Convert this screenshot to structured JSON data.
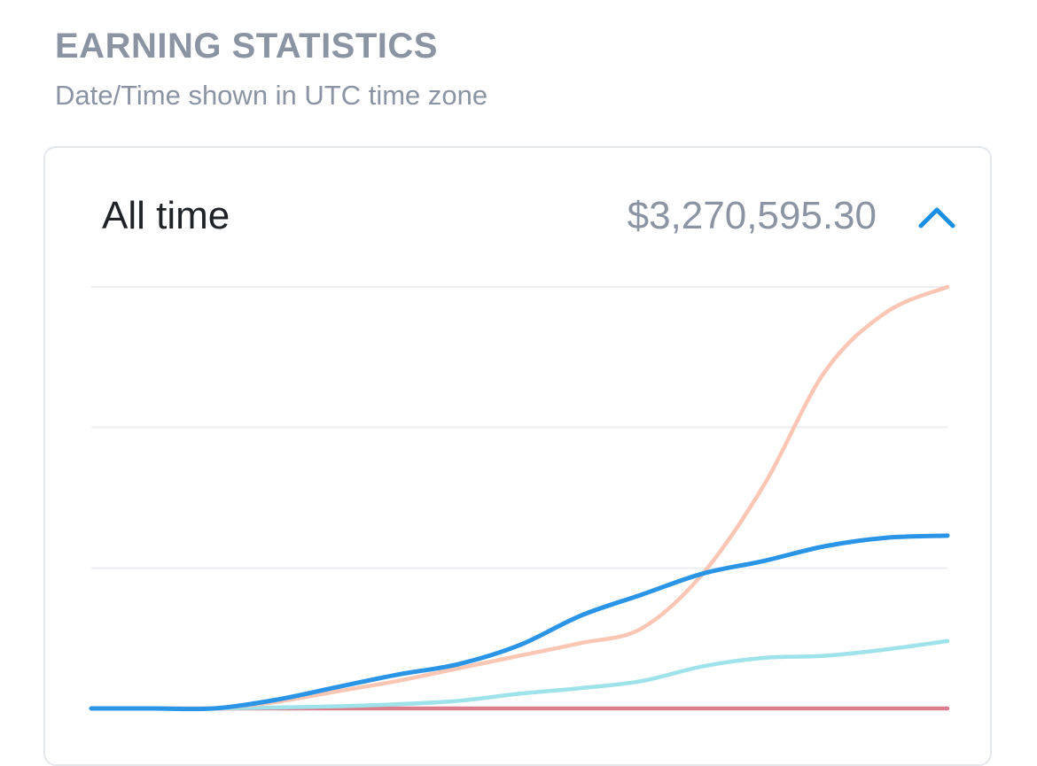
{
  "header": {
    "title": "EARNING STATISTICS",
    "subtitle": "Date/Time shown in UTC time zone"
  },
  "card": {
    "period_label": "All time",
    "total": "$3,270,595.30",
    "toggle_icon": "chevron-up-icon"
  },
  "colors": {
    "accent": "#1a8fe3",
    "series_orange": "#fbc6b4",
    "series_blue": "#2a94e6",
    "series_cyan": "#9ee2ea",
    "series_pink": "#dc7d8d",
    "grid": "#eceef1"
  },
  "chart_data": {
    "type": "line",
    "title": "",
    "xlabel": "",
    "ylabel": "",
    "x": [
      0,
      1,
      2,
      3,
      4,
      5,
      6,
      7,
      8,
      9,
      10,
      11,
      12,
      13,
      14
    ],
    "ylim": [
      0,
      1000
    ],
    "gridlines": [
      0,
      333,
      667,
      1000
    ],
    "series": [
      {
        "name": "series-orange",
        "color": "#fbc6b4",
        "values": [
          0,
          0,
          0,
          15,
          40,
          65,
          95,
          125,
          155,
          190,
          320,
          530,
          800,
          940,
          1000
        ]
      },
      {
        "name": "series-blue",
        "color": "#2a94e6",
        "values": [
          0,
          0,
          0,
          20,
          50,
          80,
          105,
          150,
          220,
          270,
          320,
          350,
          385,
          405,
          410
        ]
      },
      {
        "name": "series-cyan",
        "color": "#9ee2ea",
        "values": [
          0,
          0,
          0,
          2,
          5,
          10,
          18,
          35,
          48,
          65,
          100,
          120,
          125,
          140,
          160
        ]
      },
      {
        "name": "series-pink",
        "color": "#dc7d8d",
        "values": [
          0,
          0,
          0,
          0,
          0,
          0,
          0,
          0,
          0,
          0,
          0,
          0,
          0,
          0,
          0
        ]
      }
    ]
  }
}
